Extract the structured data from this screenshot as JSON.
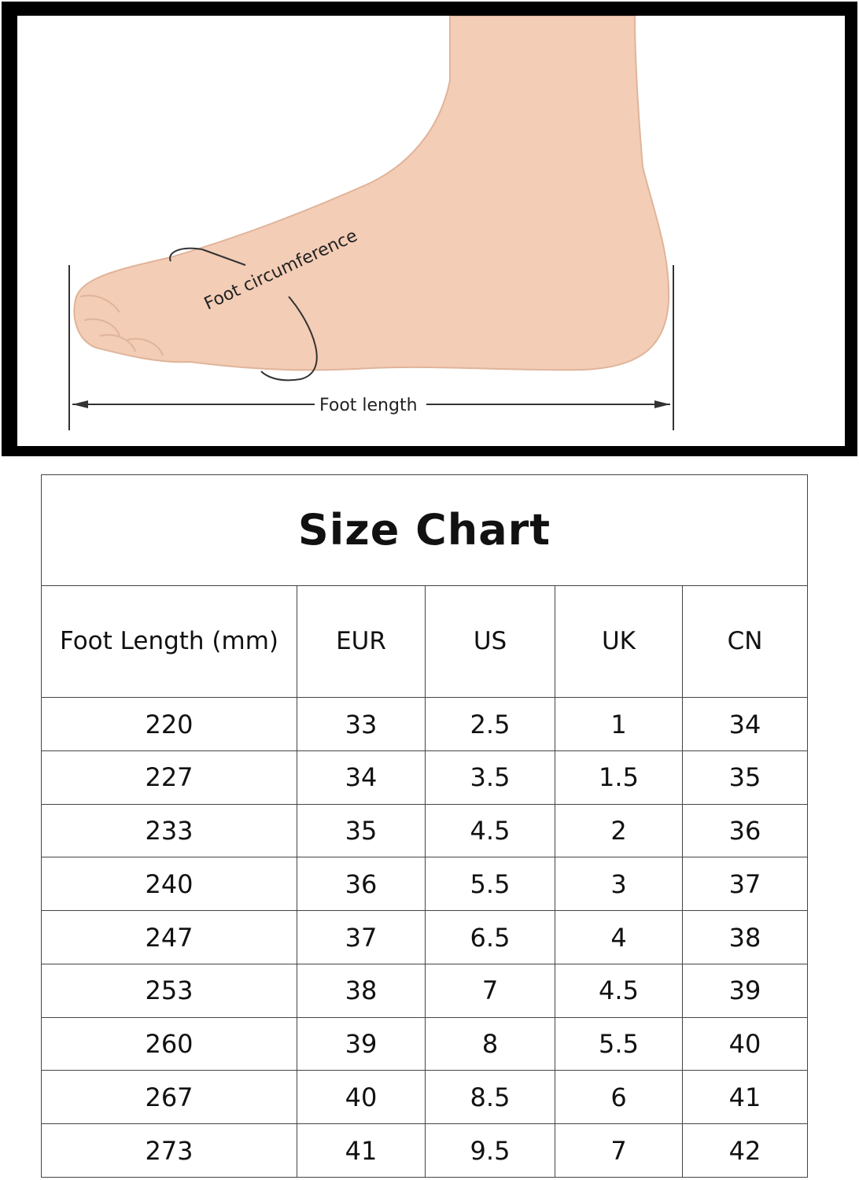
{
  "diagram": {
    "circumference_label": "Foot circumference",
    "length_label": "Foot length",
    "skin_color": "#f3cdb6"
  },
  "table": {
    "title": "Size  Chart",
    "headers": [
      "Foot Length (mm)",
      "EUR",
      "US",
      "UK",
      "CN"
    ],
    "rows": [
      [
        "220",
        "33",
        "2.5",
        "1",
        "34"
      ],
      [
        "227",
        "34",
        "3.5",
        "1.5",
        "35"
      ],
      [
        "233",
        "35",
        "4.5",
        "2",
        "36"
      ],
      [
        "240",
        "36",
        "5.5",
        "3",
        "37"
      ],
      [
        "247",
        "37",
        "6.5",
        "4",
        "38"
      ],
      [
        "253",
        "38",
        "7",
        "4.5",
        "39"
      ],
      [
        "260",
        "39",
        "8",
        "5.5",
        "40"
      ],
      [
        "267",
        "40",
        "8.5",
        "6",
        "41"
      ],
      [
        "273",
        "41",
        "9.5",
        "7",
        "42"
      ]
    ]
  }
}
